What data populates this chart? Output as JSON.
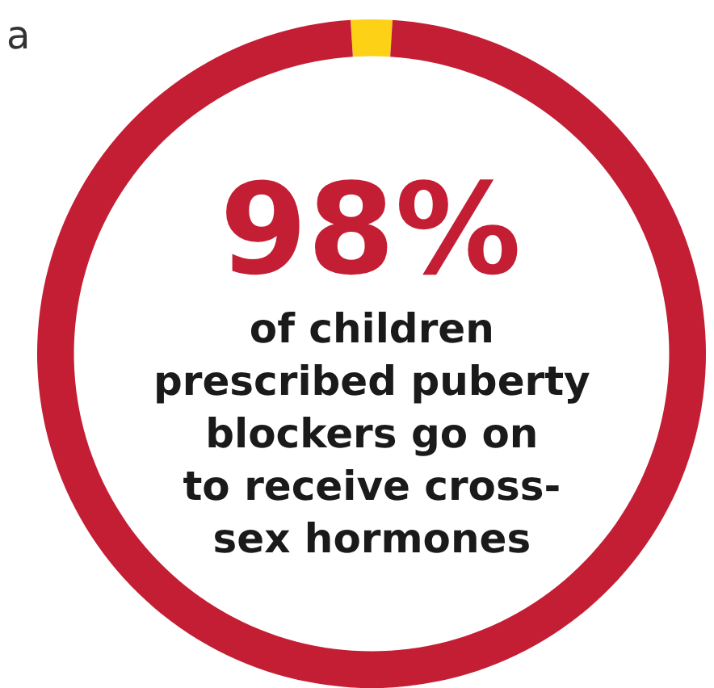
{
  "chart_data": {
    "type": "donut",
    "categories": [
      null,
      null
    ],
    "values": [
      2,
      98
    ],
    "colors": [
      "#fcd116",
      "#c41e35"
    ],
    "annotations": [
      "a",
      "98%",
      "of children\nprescribed puberty\nblockers go on\nto receive cross-\nsex hormones"
    ]
  }
}
